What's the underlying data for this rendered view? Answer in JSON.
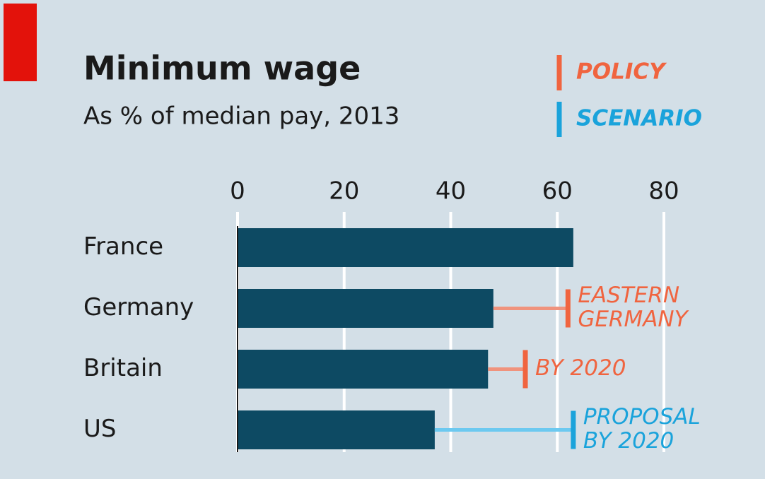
{
  "chart_data": {
    "type": "bar",
    "orientation": "horizontal",
    "title": "Minimum wage",
    "subtitle": "As % of median pay, 2013",
    "categories": [
      "France",
      "Germany",
      "Britain",
      "US"
    ],
    "series": [
      {
        "color": "#0d4a63",
        "values": [
          63,
          48,
          47,
          37
        ]
      }
    ],
    "markers": [
      {
        "name": "POLICY",
        "color": "#f0643f",
        "line_color": "#f0937d",
        "values": [
          null,
          62,
          54,
          null
        ],
        "annotations": [
          null,
          [
            "EASTERN",
            "GERMANY"
          ],
          [
            "BY 2020"
          ],
          null
        ]
      },
      {
        "name": "SCENARIO",
        "color": "#1aa3db",
        "line_color": "#6cc9f0",
        "values": [
          null,
          null,
          null,
          63
        ],
        "annotations": [
          null,
          null,
          null,
          [
            "PROPOSAL",
            "BY 2020"
          ]
        ]
      }
    ],
    "xlim": [
      0,
      80
    ],
    "xticks": [
      0,
      20,
      40,
      60,
      80
    ],
    "grid": true
  }
}
